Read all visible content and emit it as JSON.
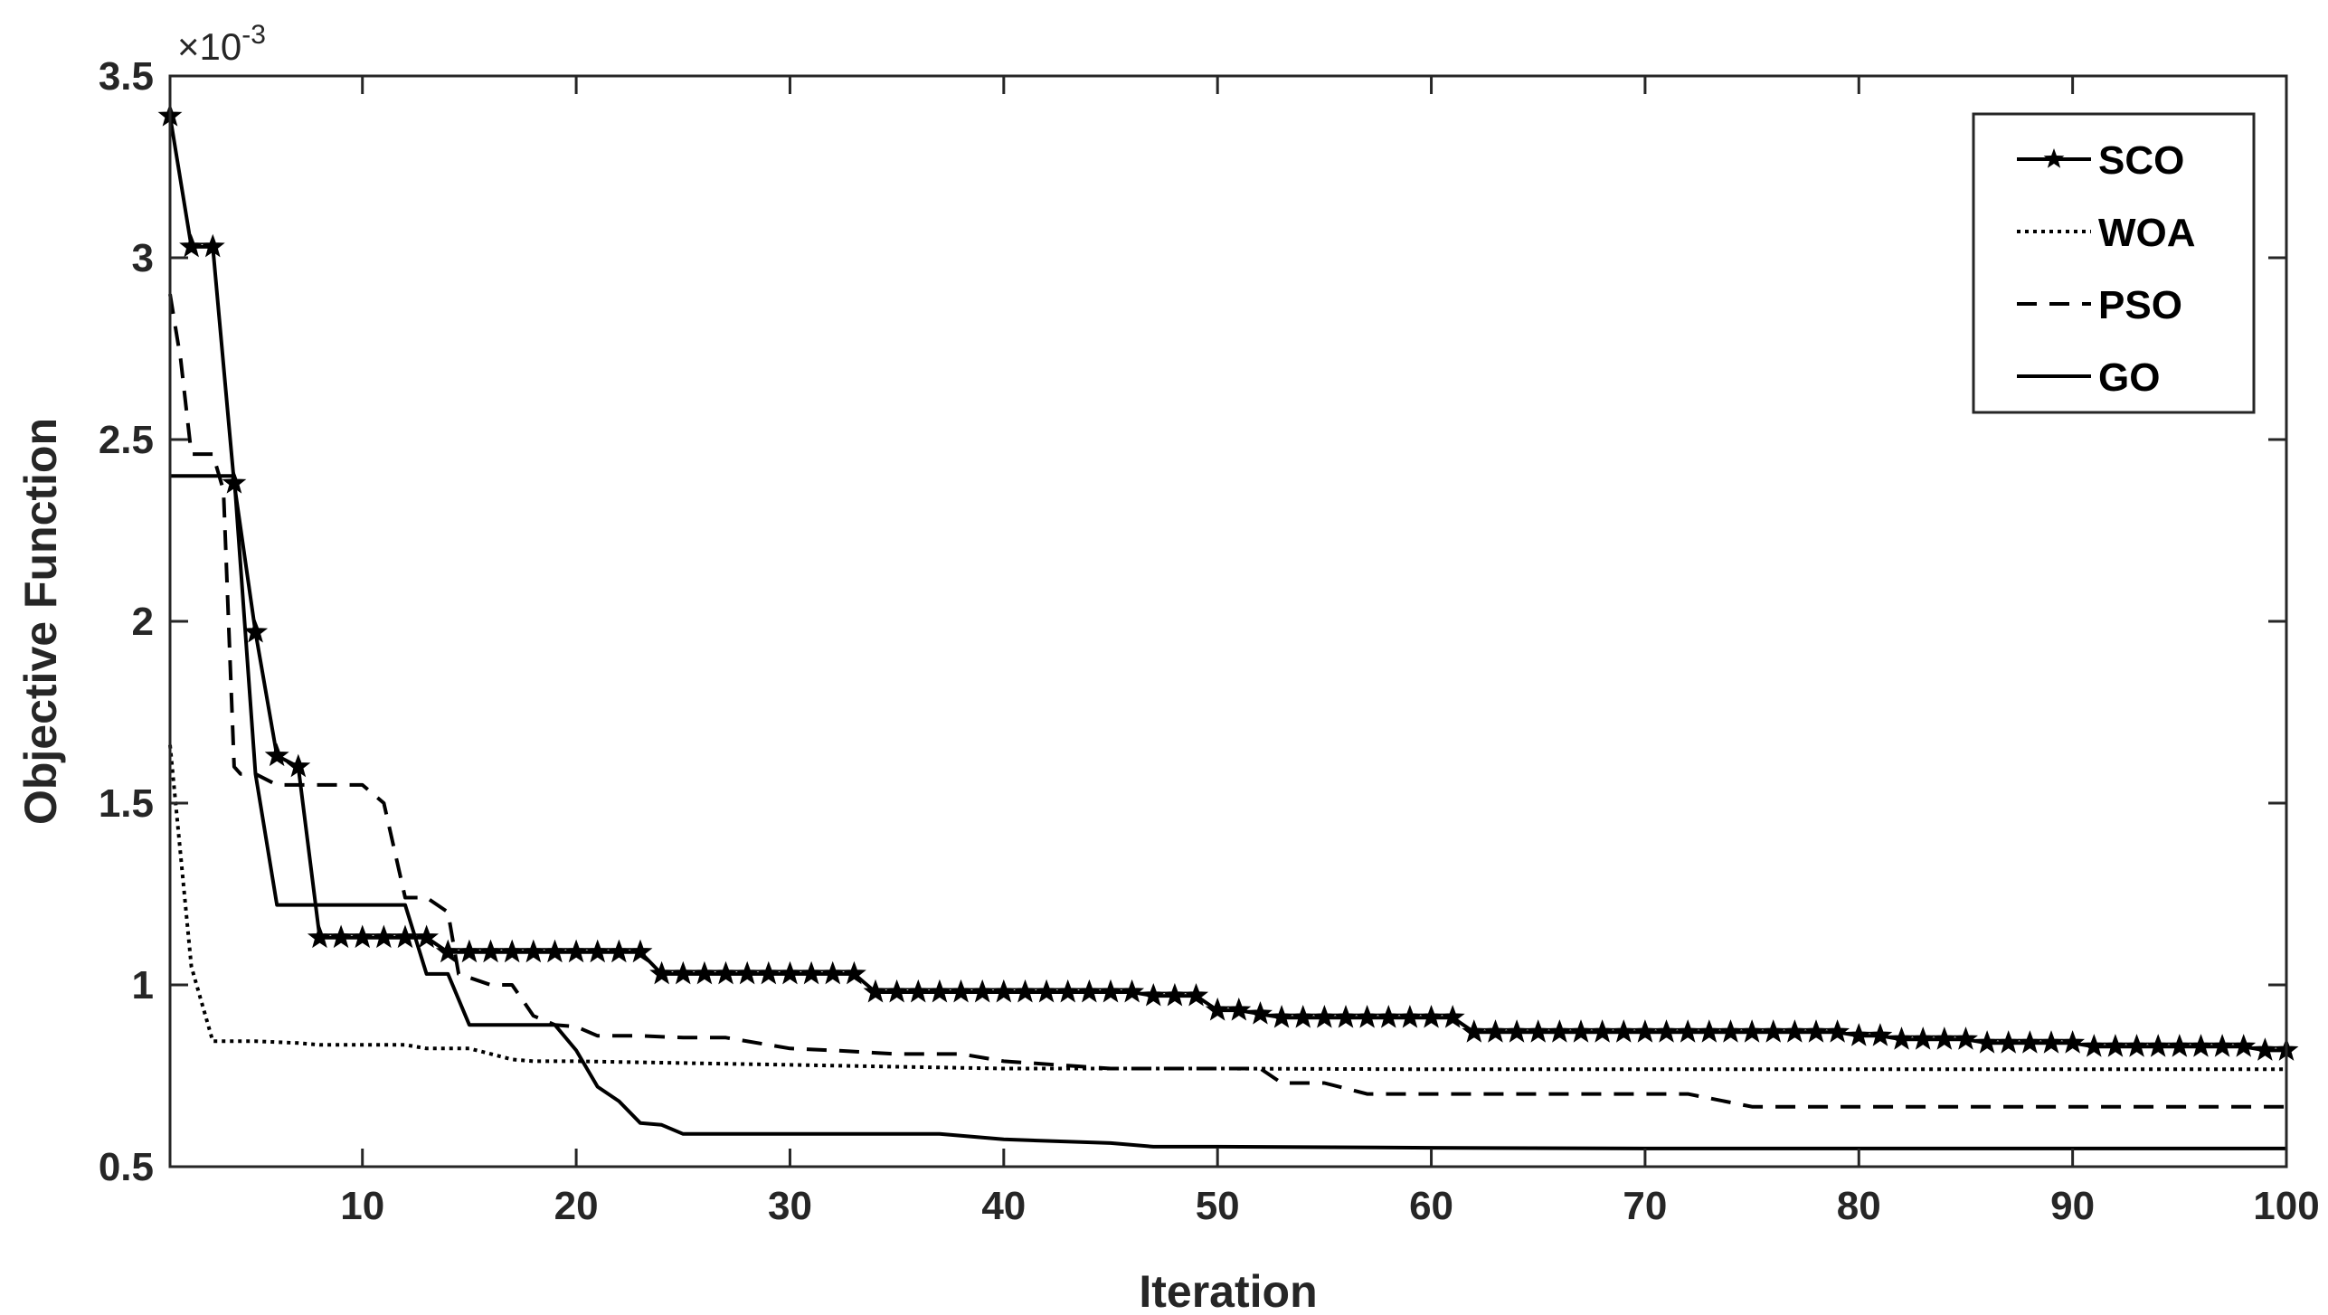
{
  "chart_data": {
    "type": "line",
    "xlabel": "Iteration",
    "ylabel": "Objective Function",
    "exponent_label": "×10",
    "exponent_power": "-3",
    "xlim": [
      1,
      100
    ],
    "ylim": [
      0.0005,
      0.0035
    ],
    "x_ticks": [
      10,
      20,
      30,
      40,
      50,
      60,
      70,
      80,
      90,
      100
    ],
    "x_tick_labels": [
      "10",
      "20",
      "30",
      "40",
      "50",
      "60",
      "70",
      "80",
      "90",
      "100"
    ],
    "y_ticks": [
      0.0005,
      0.001,
      0.0015,
      0.002,
      0.0025,
      0.003,
      0.0035
    ],
    "y_tick_labels": [
      "0.5",
      "1",
      "1.5",
      "2",
      "2.5",
      "3",
      "3.5"
    ],
    "grid": false,
    "legend_position": "top-right",
    "series": [
      {
        "name": "SCO",
        "style": "solid-star",
        "color": "#000000",
        "x": [
          1,
          2,
          3,
          4,
          5,
          6,
          7,
          8,
          9,
          10,
          11,
          12,
          13,
          14,
          15,
          16,
          17,
          18,
          19,
          20,
          21,
          22,
          23,
          24,
          25,
          26,
          27,
          28,
          29,
          30,
          31,
          32,
          33,
          34,
          35,
          36,
          37,
          38,
          39,
          40,
          41,
          42,
          43,
          44,
          45,
          46,
          47,
          48,
          49,
          50,
          51,
          52,
          53,
          54,
          55,
          56,
          57,
          58,
          59,
          60,
          61,
          62,
          63,
          64,
          65,
          66,
          67,
          68,
          69,
          70,
          71,
          72,
          73,
          74,
          75,
          76,
          77,
          78,
          79,
          80,
          81,
          82,
          83,
          84,
          85,
          86,
          87,
          88,
          89,
          90,
          91,
          92,
          93,
          94,
          95,
          96,
          97,
          98,
          99,
          100
        ],
        "y": [
          0.00339,
          0.00303,
          0.00303,
          0.00238,
          0.00197,
          0.00163,
          0.0016,
          0.00113,
          0.00113,
          0.00113,
          0.00113,
          0.00113,
          0.00113,
          0.00109,
          0.00109,
          0.00109,
          0.00109,
          0.00109,
          0.00109,
          0.00109,
          0.00109,
          0.00109,
          0.00109,
          0.00103,
          0.00103,
          0.00103,
          0.00103,
          0.00103,
          0.00103,
          0.00103,
          0.00103,
          0.00103,
          0.00103,
          0.00098,
          0.00098,
          0.00098,
          0.00098,
          0.00098,
          0.00098,
          0.00098,
          0.00098,
          0.00098,
          0.00098,
          0.00098,
          0.00098,
          0.00098,
          0.00097,
          0.00097,
          0.00097,
          0.00093,
          0.00093,
          0.00092,
          0.00091,
          0.00091,
          0.00091,
          0.00091,
          0.00091,
          0.00091,
          0.00091,
          0.00091,
          0.00091,
          0.00087,
          0.00087,
          0.00087,
          0.00087,
          0.00087,
          0.00087,
          0.00087,
          0.00087,
          0.00087,
          0.00087,
          0.00087,
          0.00087,
          0.00087,
          0.00087,
          0.00087,
          0.00087,
          0.00087,
          0.00087,
          0.00086,
          0.00086,
          0.00085,
          0.00085,
          0.00085,
          0.00085,
          0.00084,
          0.00084,
          0.00084,
          0.00084,
          0.00084,
          0.00083,
          0.00083,
          0.00083,
          0.00083,
          0.00083,
          0.00083,
          0.00083,
          0.00083,
          0.00082,
          0.00082
        ]
      },
      {
        "name": "WOA",
        "style": "dotted",
        "color": "#000000",
        "x": [
          1,
          2,
          3,
          5,
          7,
          8,
          12,
          13,
          15,
          17,
          18,
          20,
          25,
          30,
          35,
          40,
          45,
          50,
          60,
          70,
          80,
          90,
          100
        ],
        "y": [
          0.00166,
          0.00105,
          0.000845,
          0.000845,
          0.00084,
          0.000835,
          0.000835,
          0.000825,
          0.000825,
          0.000795,
          0.00079,
          0.00079,
          0.000785,
          0.00078,
          0.000775,
          0.00077,
          0.00077,
          0.00077,
          0.000768,
          0.000768,
          0.000768,
          0.000768,
          0.000768
        ]
      },
      {
        "name": "PSO",
        "style": "dashed",
        "color": "#000000",
        "x": [
          1,
          1.5,
          2,
          2.5,
          3,
          3.5,
          4,
          4.3,
          5,
          6,
          7,
          8,
          9,
          10,
          11,
          12,
          13,
          14,
          14.5,
          16,
          17,
          18,
          19,
          20,
          21,
          22,
          23,
          25,
          27,
          30,
          32,
          35,
          38,
          40,
          45,
          50,
          52,
          53,
          55,
          57,
          60,
          63,
          65,
          70,
          72,
          75,
          80,
          85,
          90,
          95,
          100
        ],
        "y": [
          0.0029,
          0.00272,
          0.00246,
          0.00246,
          0.00246,
          0.00236,
          0.0016,
          0.00158,
          0.00158,
          0.00155,
          0.00155,
          0.00155,
          0.00155,
          0.00155,
          0.0015,
          0.00124,
          0.00124,
          0.0012,
          0.00103,
          0.001,
          0.001,
          0.000915,
          0.00089,
          0.000885,
          0.00086,
          0.00086,
          0.00086,
          0.000855,
          0.000855,
          0.000825,
          0.00082,
          0.00081,
          0.00081,
          0.00079,
          0.00077,
          0.00077,
          0.00077,
          0.00073,
          0.00073,
          0.0007,
          0.0007,
          0.0007,
          0.0007,
          0.0007,
          0.0007,
          0.000665,
          0.000665,
          0.000665,
          0.000665,
          0.000665,
          0.000665
        ]
      },
      {
        "name": "GO",
        "style": "solid",
        "color": "#000000",
        "x": [
          1,
          4,
          5,
          6,
          7,
          12,
          13,
          14,
          15,
          19,
          20,
          21,
          22,
          23,
          24,
          25,
          30,
          35,
          37,
          40,
          45,
          47,
          50,
          60,
          70,
          80,
          90,
          100
        ],
        "y": [
          0.0024,
          0.0024,
          0.00158,
          0.00122,
          0.00122,
          0.00122,
          0.00103,
          0.00103,
          0.00089,
          0.00089,
          0.00082,
          0.00072,
          0.00068,
          0.00062,
          0.000615,
          0.00059,
          0.00059,
          0.00059,
          0.00059,
          0.000575,
          0.000565,
          0.000555,
          0.000555,
          0.000552,
          0.00055,
          0.00055,
          0.00055,
          0.00055
        ]
      }
    ]
  }
}
